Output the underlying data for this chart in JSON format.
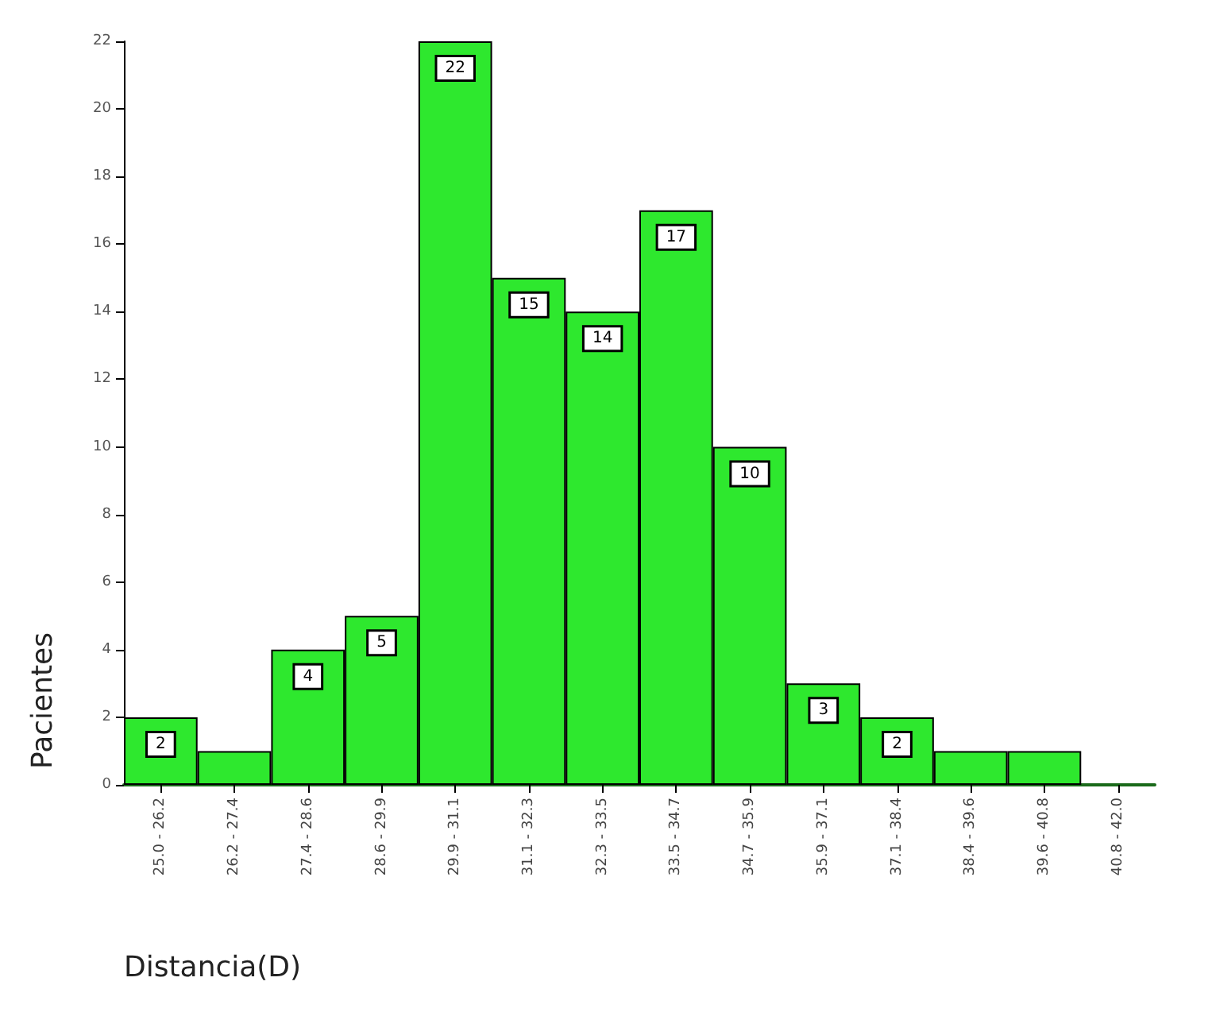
{
  "chart_data": {
    "type": "bar",
    "xlabel": "Distancia(D)",
    "ylabel": "Pacientes",
    "categories": [
      "25.0 - 26.2",
      "26.2 - 27.4",
      "27.4 - 28.6",
      "28.6 - 29.9",
      "29.9 - 31.1",
      "31.1 - 32.3",
      "32.3 - 33.5",
      "33.5 - 34.7",
      "34.7 - 35.9",
      "35.9 - 37.1",
      "37.1 - 38.4",
      "38.4 - 39.6",
      "39.6 - 40.8",
      "40.8 - 42.0"
    ],
    "values": [
      2,
      1,
      4,
      5,
      22,
      15,
      14,
      17,
      10,
      3,
      2,
      1,
      1,
      0
    ],
    "value_labels": [
      "2",
      null,
      "4",
      "5",
      "22",
      "15",
      "14",
      "17",
      "10",
      "3",
      "2",
      null,
      null,
      null
    ],
    "color": "#2ee82e",
    "ylim": [
      0,
      22
    ],
    "yticks": [
      0,
      2,
      4,
      6,
      8,
      10,
      12,
      14,
      16,
      18,
      20,
      22
    ],
    "grid": false
  }
}
